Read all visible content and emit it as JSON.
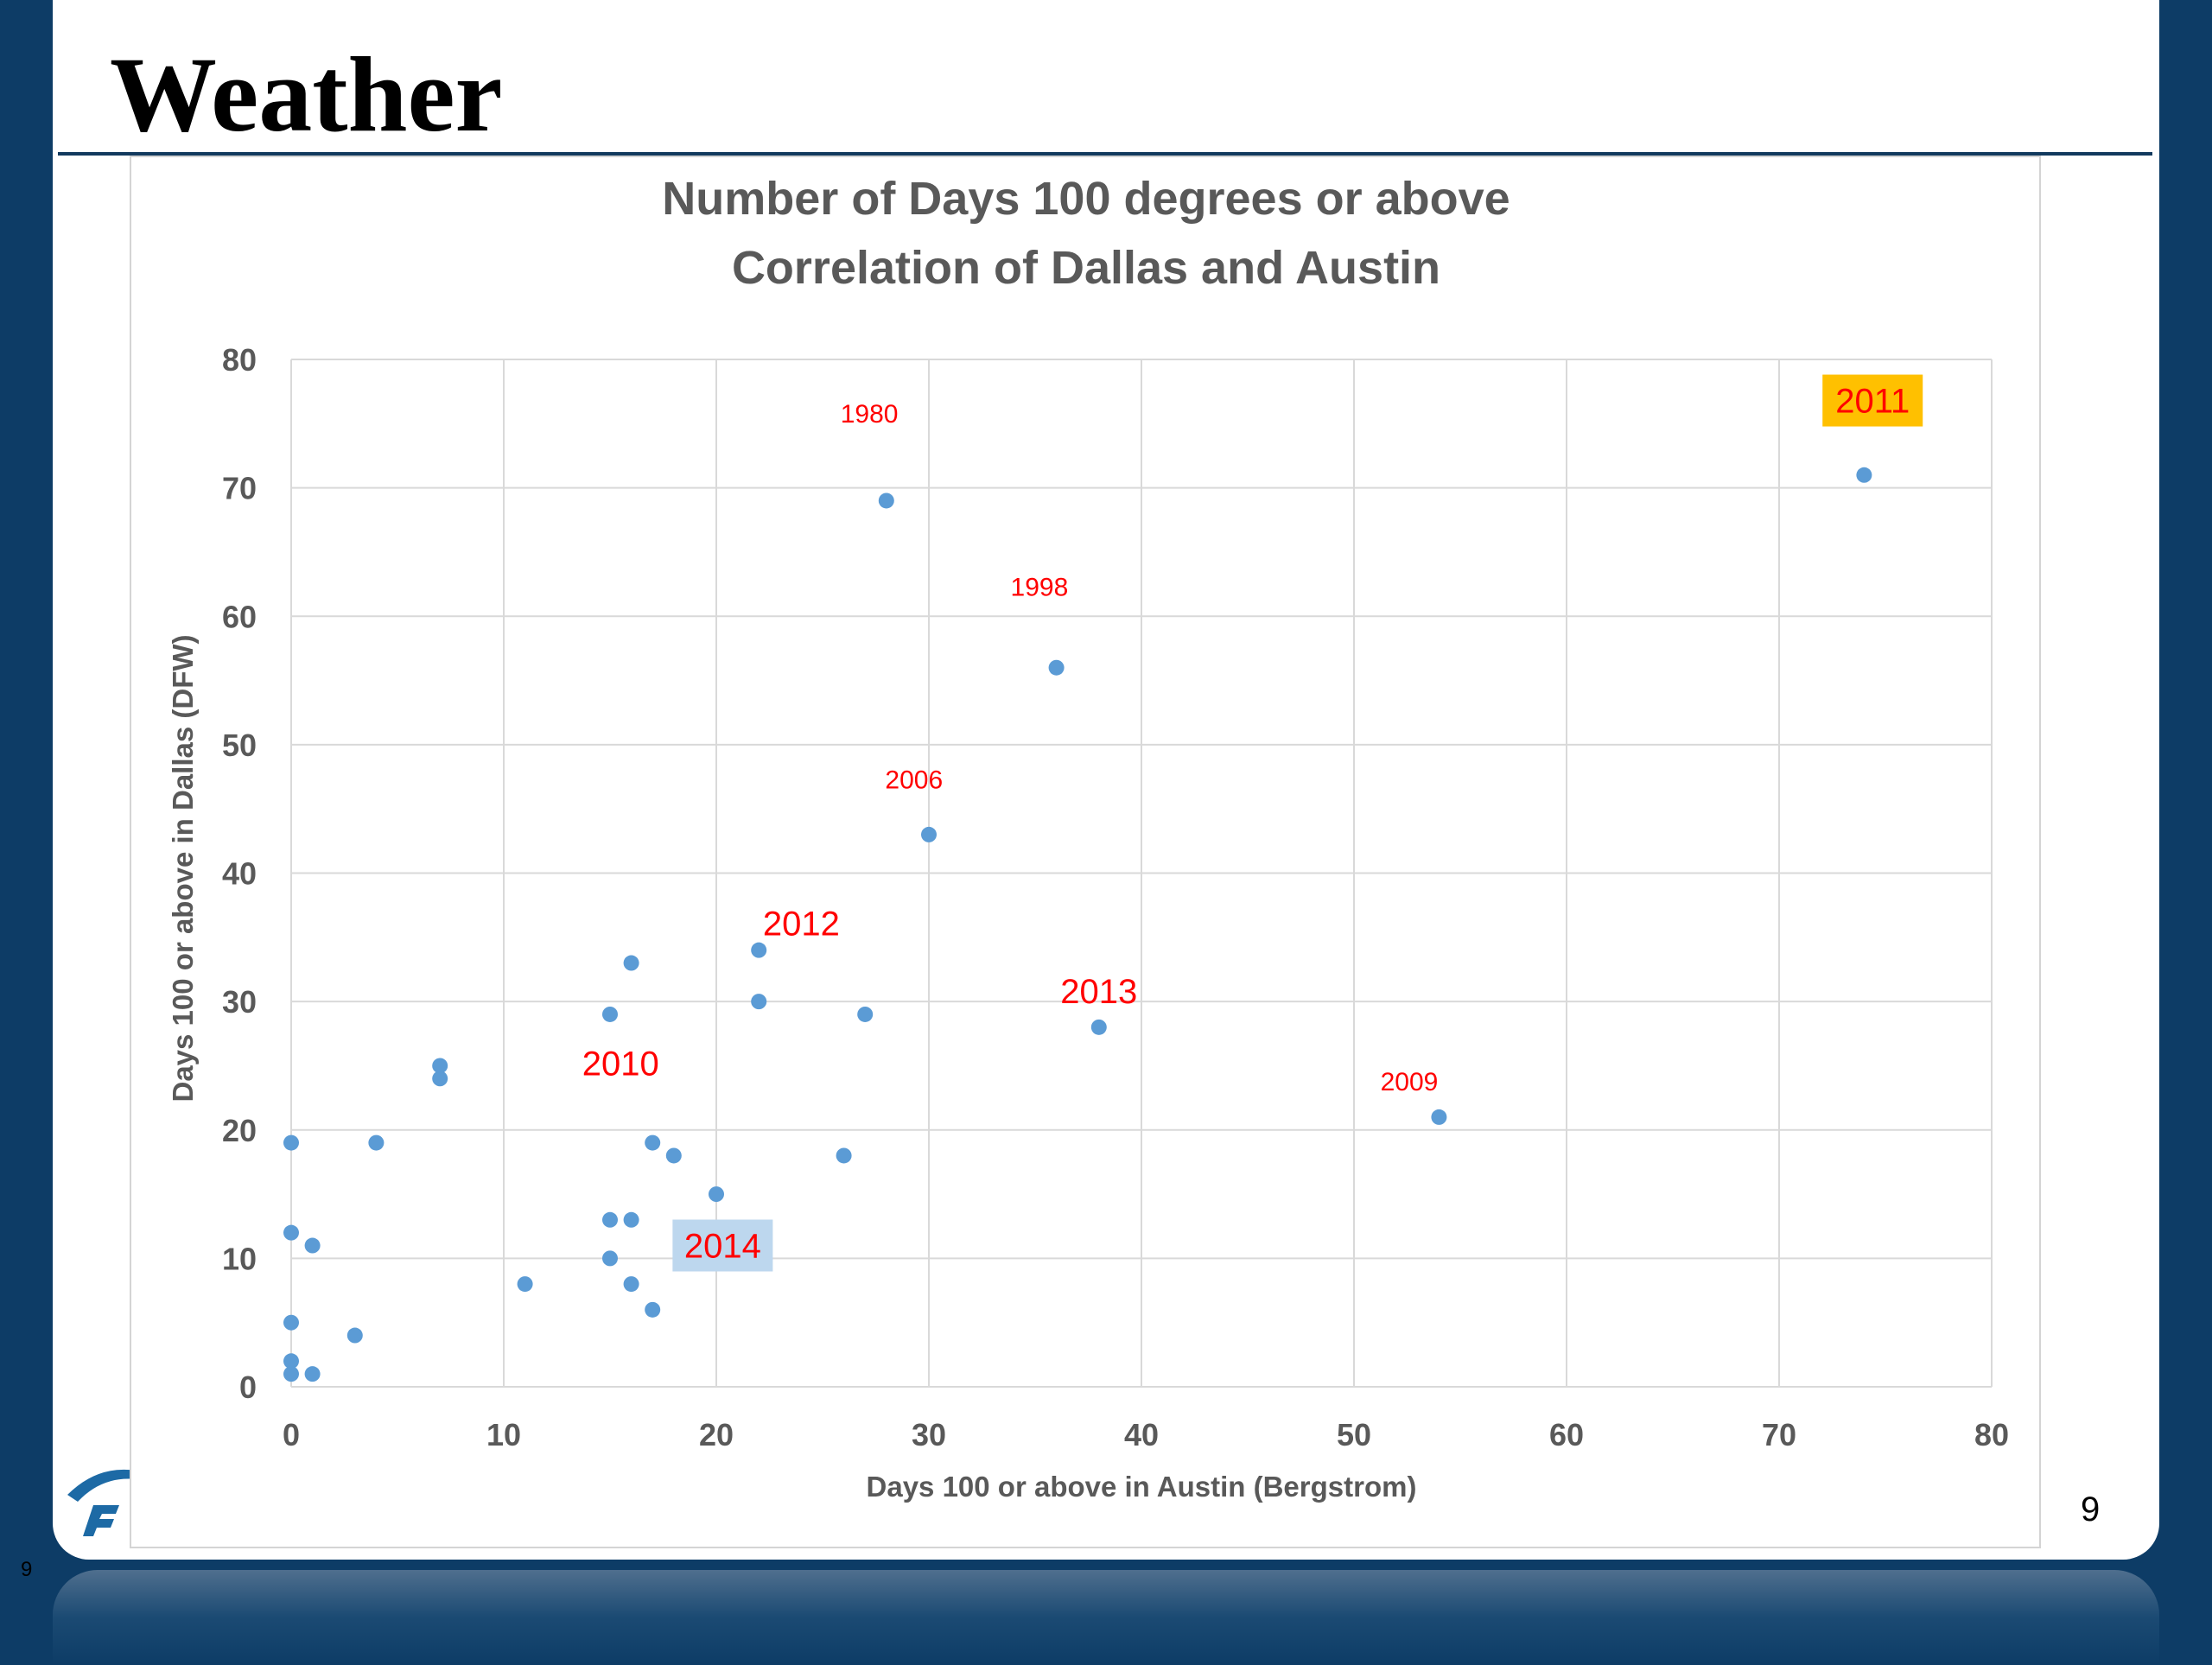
{
  "slide": {
    "title": "Weather",
    "page_number": "9",
    "page_number_small": "9"
  },
  "colors": {
    "background": "#0d3c66",
    "point": "#5b9bd5",
    "label_red": "#ff0000",
    "highlight_2011": "#ffc000",
    "highlight_2014": "#bdd7ee",
    "title_text": "#595959"
  },
  "chart_data": {
    "type": "scatter",
    "title_lines": [
      "Number of Days 100 degrees or above",
      "Correlation of Dallas and Austin"
    ],
    "xlabel": "Days 100 or above in Austin (Bergstrom)",
    "ylabel": "Days 100 or above in Dallas (DFW)",
    "xlim": [
      0,
      80
    ],
    "ylim": [
      0,
      80
    ],
    "xticks": [
      0,
      10,
      20,
      30,
      40,
      50,
      60,
      70,
      80
    ],
    "yticks": [
      0,
      10,
      20,
      30,
      40,
      50,
      60,
      70,
      80
    ],
    "grid": true,
    "points": [
      {
        "x": 0,
        "y": 1
      },
      {
        "x": 0,
        "y": 2
      },
      {
        "x": 0,
        "y": 5
      },
      {
        "x": 0,
        "y": 12
      },
      {
        "x": 0,
        "y": 19
      },
      {
        "x": 1,
        "y": 1
      },
      {
        "x": 1,
        "y": 11
      },
      {
        "x": 3,
        "y": 4
      },
      {
        "x": 4,
        "y": 19
      },
      {
        "x": 7,
        "y": 24
      },
      {
        "x": 7,
        "y": 25
      },
      {
        "x": 11,
        "y": 8
      },
      {
        "x": 15,
        "y": 10
      },
      {
        "x": 15,
        "y": 13
      },
      {
        "x": 15,
        "y": 29
      },
      {
        "x": 16,
        "y": 8
      },
      {
        "x": 16,
        "y": 13
      },
      {
        "x": 16,
        "y": 33
      },
      {
        "x": 17,
        "y": 6
      },
      {
        "x": 17,
        "y": 19
      },
      {
        "x": 18,
        "y": 18
      },
      {
        "x": 20,
        "y": 15
      },
      {
        "x": 22,
        "y": 30
      },
      {
        "x": 22,
        "y": 34
      },
      {
        "x": 26,
        "y": 18
      },
      {
        "x": 27,
        "y": 29
      },
      {
        "x": 28,
        "y": 69
      },
      {
        "x": 30,
        "y": 43
      },
      {
        "x": 36,
        "y": 56
      },
      {
        "x": 38,
        "y": 28
      },
      {
        "x": 54,
        "y": 21
      },
      {
        "x": 74,
        "y": 71
      }
    ],
    "annotations": [
      {
        "text": "1980",
        "x": 27.2,
        "y": 75.8,
        "size": "small",
        "highlight": null
      },
      {
        "text": "1998",
        "x": 35.2,
        "y": 62.3,
        "size": "small",
        "highlight": null
      },
      {
        "text": "2006",
        "x": 29.3,
        "y": 47.3,
        "size": "small",
        "highlight": null
      },
      {
        "text": "2012",
        "x": 24.0,
        "y": 36.1,
        "size": "large",
        "highlight": null
      },
      {
        "text": "2013",
        "x": 38.0,
        "y": 30.8,
        "size": "large",
        "highlight": null
      },
      {
        "text": "2010",
        "x": 15.5,
        "y": 25.2,
        "size": "large",
        "highlight": null
      },
      {
        "text": "2009",
        "x": 52.6,
        "y": 23.8,
        "size": "small",
        "highlight": null
      },
      {
        "text": "2014",
        "x": 20.3,
        "y": 11.0,
        "size": "large",
        "highlight": "highlight_2014"
      },
      {
        "text": "2011",
        "x": 74.4,
        "y": 76.8,
        "size": "large",
        "highlight": "highlight_2011"
      }
    ]
  }
}
